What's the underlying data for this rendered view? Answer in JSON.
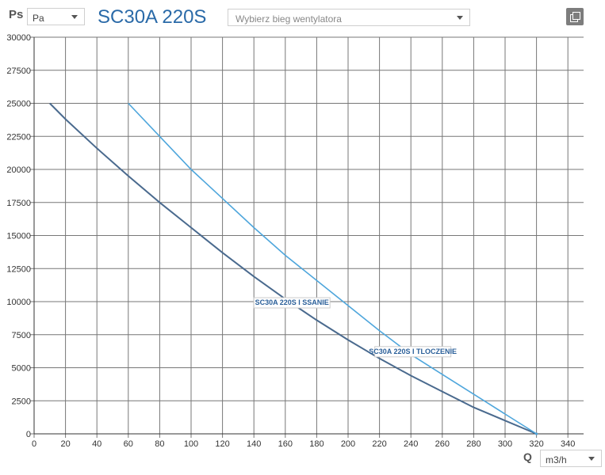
{
  "header": {
    "ps_label": "Ps",
    "unit_select": {
      "value": "Pa"
    },
    "title": "SC30A 220S",
    "gear_select": {
      "placeholder": "Wybierz bieg wentylatora"
    },
    "copy_icon": "copy-icon"
  },
  "footer": {
    "q_label": "Q",
    "flow_unit_select": {
      "value": "m3/h"
    }
  },
  "colors": {
    "ssanie": "#4a6a8e",
    "tloczenie": "#4ea6dc",
    "grid": "#777777",
    "label_text": "#2a5f99"
  },
  "chart_data": {
    "type": "line",
    "title": "SC30A 220S",
    "xlabel": "Q",
    "ylabel": "Ps",
    "xlim": [
      0,
      350
    ],
    "ylim": [
      0,
      30000
    ],
    "xticks": [
      0,
      20,
      40,
      60,
      80,
      100,
      120,
      140,
      160,
      180,
      200,
      220,
      240,
      260,
      280,
      300,
      320,
      340
    ],
    "yticks": [
      0,
      2500,
      5000,
      7500,
      10000,
      12500,
      15000,
      17500,
      20000,
      22500,
      25000,
      27500,
      30000
    ],
    "grid": true,
    "series": [
      {
        "name": "SC30A 220S I SSANIE",
        "x": [
          10,
          20,
          40,
          60,
          80,
          100,
          120,
          140,
          160,
          180,
          200,
          220,
          240,
          260,
          280,
          300,
          320
        ],
        "y": [
          25000,
          23800,
          21600,
          19500,
          17500,
          15600,
          13700,
          11900,
          10200,
          8600,
          7100,
          5700,
          4400,
          3200,
          2000,
          1000,
          0
        ]
      },
      {
        "name": "SC30A 220S I TLOCZENIE",
        "x": [
          60,
          80,
          100,
          120,
          140,
          160,
          180,
          200,
          220,
          240,
          260,
          280,
          300,
          320
        ],
        "y": [
          25000,
          22500,
          20000,
          17800,
          15600,
          13500,
          11600,
          9700,
          7800,
          6000,
          4500,
          3000,
          1500,
          0
        ]
      }
    ]
  }
}
